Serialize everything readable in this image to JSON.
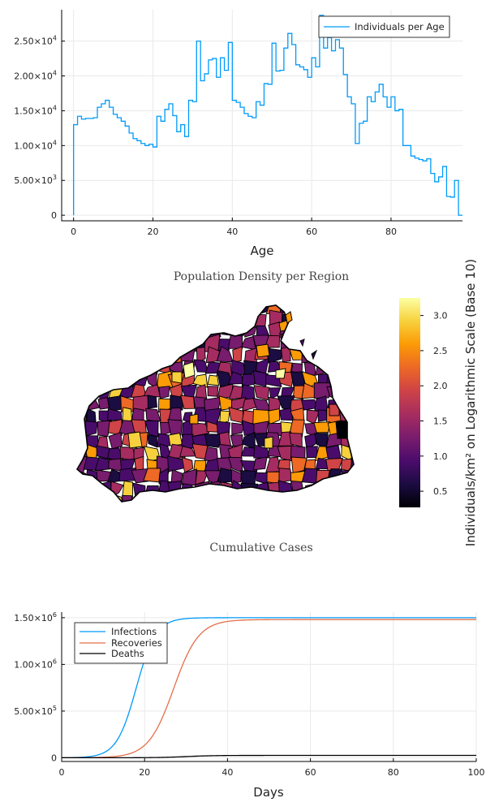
{
  "chart_data": [
    {
      "type": "line",
      "style": "step",
      "xlabel": "Age",
      "ylabel": "",
      "xlim": [
        -3,
        98
      ],
      "ylim": [
        -800,
        29500
      ],
      "x_ticks": [
        0,
        20,
        40,
        60,
        80
      ],
      "y_ticks": [
        0,
        5000,
        10000,
        15000,
        20000,
        25000
      ],
      "y_tick_labels": [
        {
          "mant": "0",
          "exp": ""
        },
        {
          "mant": "5.00×10",
          "exp": "3"
        },
        {
          "mant": "1.00×10",
          "exp": "4"
        },
        {
          "mant": "1.50×10",
          "exp": "4"
        },
        {
          "mant": "2.00×10",
          "exp": "4"
        },
        {
          "mant": "2.50×10",
          "exp": "4"
        }
      ],
      "grid": true,
      "legend_position": "top-right",
      "series": [
        {
          "name": "Individuals per Age",
          "color": "#009AFA",
          "values": [
            13000,
            14200,
            13800,
            13900,
            13900,
            14000,
            15500,
            16000,
            16500,
            15500,
            14500,
            14000,
            13500,
            12800,
            11800,
            11000,
            10700,
            10300,
            10000,
            10200,
            9800,
            14200,
            13500,
            15200,
            16000,
            14300,
            12000,
            13000,
            11300,
            16500,
            16300,
            25000,
            19300,
            20300,
            22300,
            22500,
            19800,
            22600,
            20800,
            24800,
            16500,
            16200,
            15500,
            14600,
            14200,
            14000,
            16300,
            15800,
            18900,
            18800,
            24700,
            20700,
            20800,
            24000,
            26100,
            24500,
            21600,
            21300,
            20900,
            19800,
            22600,
            21300,
            28700,
            24000,
            25500,
            23600,
            25200,
            24000,
            20200,
            17000,
            16000,
            10300,
            13200,
            13500,
            17000,
            16300,
            17700,
            18800,
            17000,
            15500,
            17000,
            15000,
            15200,
            10000,
            10000,
            8500,
            8200,
            8000,
            7800,
            8100,
            6000,
            4800,
            5500,
            7000,
            2700,
            2600,
            5000,
            0
          ]
        }
      ]
    },
    {
      "type": "heatmap",
      "subtype": "choropleth",
      "title": "Population Density per Region",
      "colorbar_label": "Individuals/km² on Logarithmic Scale (Base 10)",
      "colorbar_range": [
        0.27,
        3.25
      ],
      "colorbar_ticks": [
        0.5,
        1.0,
        1.5,
        2.0,
        2.5,
        3.0
      ],
      "colorbar_tick_labels": [
        "0.5",
        "1.0",
        "1.5",
        "2.0",
        "2.5",
        "3.0"
      ],
      "colormap": [
        "#000004",
        "#1b0c41",
        "#4a0c6b",
        "#781c6d",
        "#a52c60",
        "#cf4446",
        "#ed6925",
        "#fb9b06",
        "#f7d13d",
        "#fcffa4"
      ]
    },
    {
      "type": "line",
      "title": "Cumulative Cases",
      "xlabel": "Days",
      "ylabel": "",
      "xlim": [
        0,
        100
      ],
      "ylim": [
        -40000,
        1560000
      ],
      "x_ticks": [
        0,
        20,
        40,
        60,
        80,
        100
      ],
      "y_ticks": [
        0,
        500000,
        1000000,
        1500000
      ],
      "y_tick_labels": [
        {
          "mant": "0",
          "exp": ""
        },
        {
          "mant": "5.00×10",
          "exp": "5"
        },
        {
          "mant": "1.00×10",
          "exp": "6"
        },
        {
          "mant": "1.50×10",
          "exp": "6"
        }
      ],
      "grid": true,
      "legend_position": "top-left",
      "series": [
        {
          "name": "Infections",
          "color": "#009AFA",
          "model": "logistic",
          "max": 1500000,
          "midpoint": 18,
          "rate": 0.42
        },
        {
          "name": "Recoveries",
          "color": "#E36F47",
          "model": "logistic",
          "max": 1480000,
          "midpoint": 27,
          "rate": 0.33
        },
        {
          "name": "Deaths",
          "color": "#000000",
          "model": "logistic",
          "max": 25000,
          "midpoint": 30,
          "rate": 0.3
        }
      ]
    }
  ]
}
